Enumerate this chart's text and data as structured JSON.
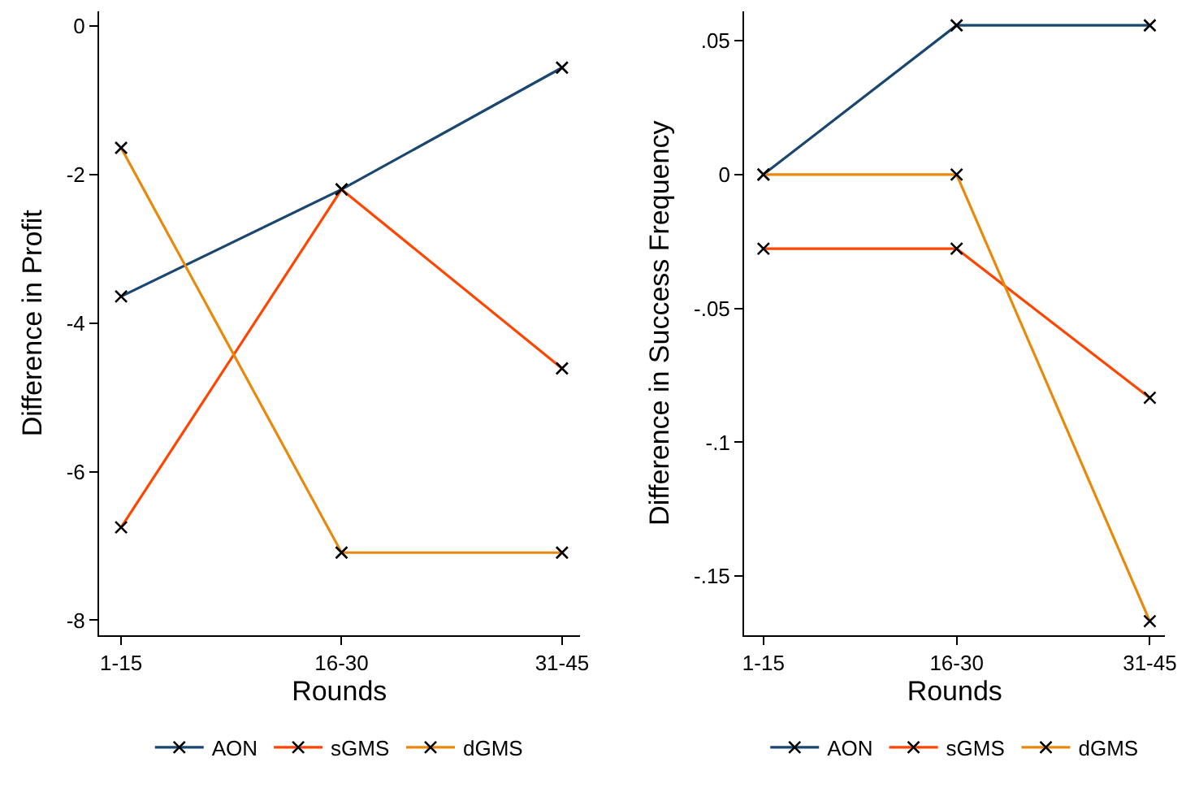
{
  "chart_data": [
    {
      "type": "line",
      "xlabel": "Rounds",
      "ylabel": "Difference in Profit",
      "categories": [
        "1-15",
        "16-30",
        "31-45"
      ],
      "series": [
        {
          "name": "AON",
          "color": "#1a476f",
          "values": [
            -3.64,
            -2.2,
            -0.56
          ]
        },
        {
          "name": "sGMS",
          "color": "#ff4500",
          "values": [
            -6.75,
            -2.2,
            -4.61
          ]
        },
        {
          "name": "dGMS",
          "color": "#e8890c",
          "values": [
            -1.64,
            -7.09,
            -7.09
          ]
        }
      ],
      "ylim": [
        -8.2,
        0.2
      ],
      "yticks": [
        0,
        -2,
        -4,
        -6,
        -8
      ],
      "legend": "bottom",
      "marker": "cross",
      "line_style": "solid"
    },
    {
      "type": "line",
      "xlabel": "Rounds",
      "ylabel": "Difference in Success Frequency",
      "categories": [
        "1-15",
        "16-30",
        "31-45"
      ],
      "series": [
        {
          "name": "AON",
          "color": "#1a476f",
          "values": [
            0,
            0.0557,
            0.0557
          ]
        },
        {
          "name": "sGMS",
          "color": "#ff4500",
          "values": [
            -0.0277,
            -0.0277,
            -0.0834
          ]
        },
        {
          "name": "dGMS",
          "color": "#e8890c",
          "values": [
            0,
            0,
            -0.1668
          ]
        }
      ],
      "ylim": [
        -0.172,
        0.061
      ],
      "yticks": [
        {
          "value": 0.05,
          "label": ".05"
        },
        0,
        {
          "value": -0.05,
          "label": "-.05"
        },
        {
          "value": -0.1,
          "label": "-.1"
        },
        {
          "value": -0.15,
          "label": "-.15"
        }
      ],
      "legend": "bottom",
      "marker": "cross",
      "line_style": "solid"
    }
  ]
}
